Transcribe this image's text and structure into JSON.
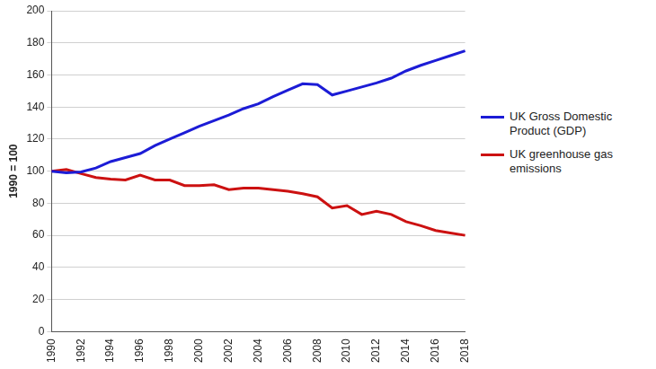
{
  "chart_data": {
    "type": "line",
    "ylabel": "1990 = 100",
    "categories": [
      "1990",
      null,
      "1992",
      null,
      "1994",
      null,
      "1996",
      null,
      "1998",
      null,
      "2000",
      null,
      "2002",
      null,
      "2004",
      null,
      "2006",
      null,
      "2008",
      null,
      "2010",
      null,
      "2012",
      null,
      "2014",
      null,
      "2016",
      null,
      "2018"
    ],
    "series": [
      {
        "name": "UK Gross Domestic Product (GDP)",
        "color": "#1c1cd6",
        "values": [
          100,
          99,
          99.5,
          102,
          106,
          108.5,
          111,
          116,
          120,
          124,
          128,
          131.5,
          135,
          139,
          142,
          146.5,
          150.5,
          154.5,
          154,
          147.5,
          150,
          152.5,
          155,
          158,
          162.5,
          166,
          169,
          172,
          175
        ]
      },
      {
        "name": "UK greenhouse gas emissions",
        "color": "#cc1111",
        "values": [
          100,
          101,
          98.5,
          96,
          95,
          94.5,
          97.5,
          94.5,
          94.5,
          91,
          91,
          91.5,
          88.5,
          89.5,
          89.5,
          88.5,
          87.5,
          86,
          84,
          77,
          78.5,
          73,
          75,
          73,
          68.5,
          66,
          63,
          61.5,
          60
        ]
      }
    ],
    "ylim": [
      0,
      200
    ],
    "yticks": [
      0,
      20,
      40,
      60,
      80,
      100,
      120,
      140,
      160,
      180,
      200
    ],
    "grid": true,
    "legend": "right"
  }
}
